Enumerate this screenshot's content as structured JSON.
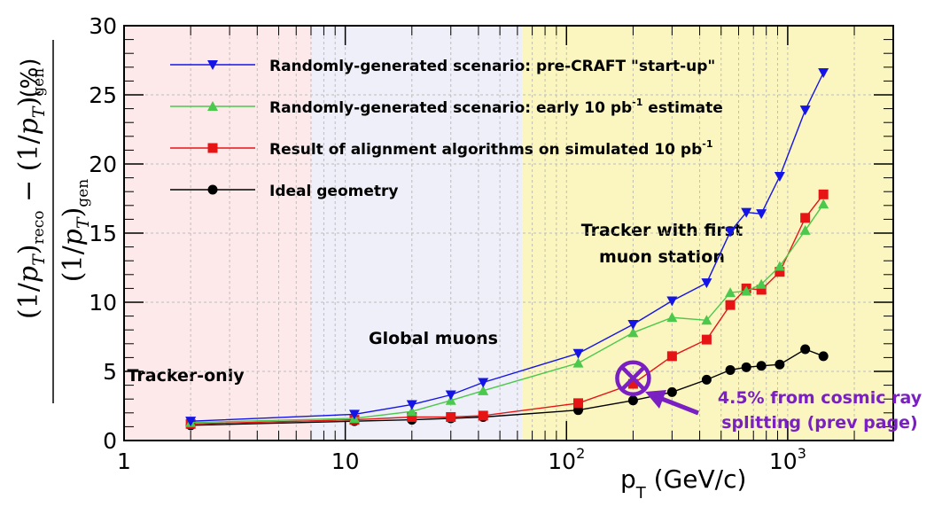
{
  "chart_data": {
    "type": "line",
    "x_scale": "log",
    "xlim": [
      1,
      3000
    ],
    "ylim": [
      0,
      30
    ],
    "xlabel_main": "p",
    "xlabel_sub": "T",
    "xlabel_rest": " (GeV/c)",
    "ylabel_unit": "(%)",
    "x_tick_labels": [
      {
        "value": 1,
        "base": "1",
        "exp": ""
      },
      {
        "value": 10,
        "base": "10",
        "exp": ""
      },
      {
        "value": 100,
        "base": "10",
        "exp": "2"
      },
      {
        "value": 1000,
        "base": "10",
        "exp": "3"
      }
    ],
    "y_ticks": [
      0,
      5,
      10,
      15,
      20,
      25,
      30
    ],
    "regions": [
      {
        "x0": 1,
        "x1": 7,
        "color": "#fde8ea",
        "label": "Tracker-only",
        "label_x": 1.9,
        "label_y": 4.3
      },
      {
        "x0": 7,
        "x1": 63,
        "color": "#eeeff8",
        "label": "Global muons",
        "label_x": 25,
        "label_y": 7.0
      },
      {
        "x0": 63,
        "x1": 3000,
        "color": "#fbf6c0",
        "label_lines": [
          "Tracker with first",
          "muon station"
        ],
        "label_x": 270,
        "label_y": 14.8
      }
    ],
    "series": [
      {
        "name": "Randomly-generated scenario: pre-CRAFT \"start-up\"",
        "color": "#1414e6",
        "marker": "triangle-down",
        "x": [
          2,
          11,
          20,
          30,
          42,
          113,
          200,
          300,
          430,
          550,
          650,
          760,
          920,
          1200,
          1450
        ],
        "y": [
          1.4,
          1.9,
          2.6,
          3.3,
          4.2,
          6.3,
          8.4,
          10.1,
          11.4,
          15.1,
          16.5,
          16.4,
          19.1,
          23.9,
          26.6
        ]
      },
      {
        "name": "Randomly-generated scenario: early 10 pb",
        "name_sup": "-1",
        "name_after": " estimate",
        "color": "#4cc84c",
        "marker": "triangle-up",
        "x": [
          2,
          11,
          20,
          30,
          42,
          113,
          200,
          300,
          430,
          550,
          650,
          760,
          920,
          1200,
          1450
        ],
        "y": [
          1.3,
          1.6,
          2.1,
          2.9,
          3.6,
          5.6,
          7.8,
          8.9,
          8.7,
          10.7,
          10.8,
          11.3,
          12.6,
          15.2,
          17.1
        ]
      },
      {
        "name": "Result of alignment algorithms on simulated 10 pb",
        "name_sup": "-1",
        "name_after": "",
        "color": "#e61414",
        "marker": "square",
        "x": [
          2,
          11,
          20,
          30,
          42,
          113,
          200,
          300,
          430,
          550,
          650,
          760,
          920,
          1200,
          1450
        ],
        "y": [
          1.2,
          1.5,
          1.7,
          1.7,
          1.8,
          2.7,
          4.1,
          6.1,
          7.3,
          9.8,
          11.0,
          10.9,
          12.2,
          16.1,
          17.8
        ]
      },
      {
        "name": "Ideal geometry",
        "color": "#000000",
        "marker": "circle",
        "x": [
          2,
          11,
          20,
          30,
          42,
          113,
          200,
          300,
          430,
          550,
          650,
          760,
          920,
          1200,
          1450
        ],
        "y": [
          1.1,
          1.4,
          1.5,
          1.6,
          1.7,
          2.2,
          2.9,
          3.5,
          4.4,
          5.1,
          5.3,
          5.4,
          5.5,
          6.6,
          6.1
        ]
      }
    ],
    "annotation": {
      "lines": [
        "4.5% from cosmic ray",
        "splitting (prev page)"
      ],
      "color": "#7a1fc2",
      "marker_x": 200,
      "marker_y": 4.5
    }
  }
}
